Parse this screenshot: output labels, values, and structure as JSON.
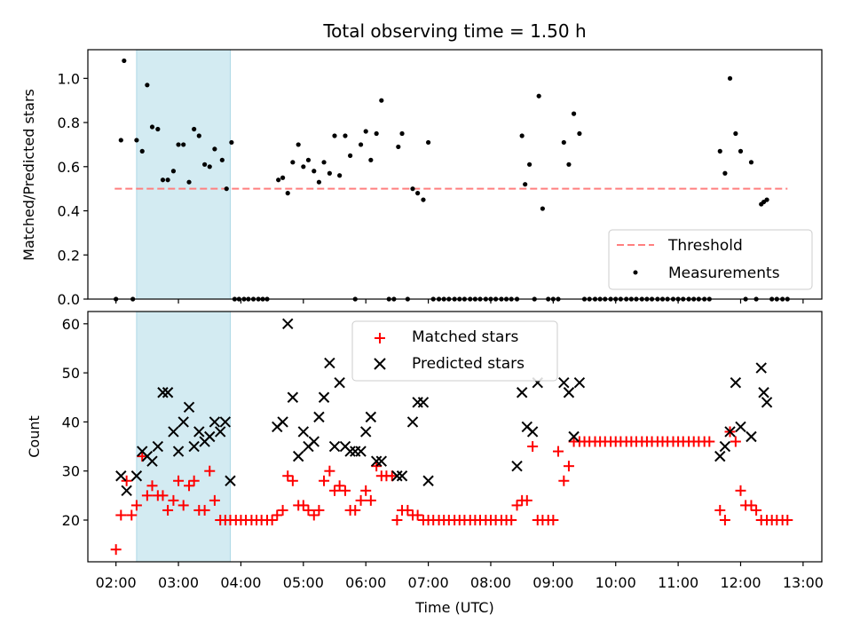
{
  "figure": {
    "title": "Total observing time = 1.50 h",
    "xlabel": "Time (UTC)",
    "x_ticks": [
      "02:00",
      "03:00",
      "04:00",
      "05:00",
      "06:00",
      "07:00",
      "08:00",
      "09:00",
      "10:00",
      "11:00",
      "12:00",
      "13:00"
    ]
  },
  "chart_data": [
    {
      "type": "scatter",
      "panel": "top",
      "title": "Total observing time = 1.50 h",
      "ylabel": "Matched/Predicted stars",
      "xlim": [
        1.55,
        13.3
      ],
      "ylim": [
        0.0,
        1.13
      ],
      "y_ticks": [
        "0.0",
        "0.2",
        "0.4",
        "0.6",
        "0.8",
        "1.0"
      ],
      "highlight_span": {
        "x0": 2.33,
        "x1": 3.83,
        "color": "#d3ebf2"
      },
      "legend": {
        "position": "lower right",
        "entries": [
          "Threshold",
          "Measurements"
        ]
      },
      "threshold": {
        "name": "Threshold",
        "y": 0.5,
        "x_range": [
          1.98,
          12.75
        ],
        "color": "#ff7f7f",
        "style": "dashed"
      },
      "measurements": {
        "name": "Measurements",
        "color": "#000000",
        "x": [
          2.0,
          2.08,
          2.13,
          2.27,
          2.33,
          2.42,
          2.5,
          2.58,
          2.67,
          2.75,
          2.83,
          2.92,
          3.0,
          3.08,
          3.17,
          3.25,
          3.33,
          3.42,
          3.5,
          3.58,
          3.7,
          3.77,
          3.85,
          3.9,
          3.97,
          4.05,
          4.12,
          4.2,
          4.28,
          4.35,
          4.42,
          4.6,
          4.67,
          4.75,
          4.83,
          4.92,
          5.0,
          5.08,
          5.17,
          5.25,
          5.33,
          5.42,
          5.5,
          5.58,
          5.67,
          5.75,
          5.83,
          5.92,
          6.0,
          6.08,
          6.17,
          6.25,
          6.37,
          6.45,
          6.52,
          6.58,
          6.67,
          6.75,
          6.83,
          6.92,
          7.0,
          7.08,
          7.17,
          7.25,
          7.33,
          7.42,
          7.5,
          7.58,
          7.67,
          7.75,
          7.83,
          7.92,
          8.0,
          8.08,
          8.17,
          8.25,
          8.33,
          8.42,
          8.5,
          8.55,
          8.62,
          8.7,
          8.77,
          8.83,
          8.92,
          9.0,
          9.08,
          9.17,
          9.25,
          9.33,
          9.42,
          9.5,
          9.58,
          9.67,
          9.75,
          9.83,
          9.92,
          10.0,
          10.08,
          10.17,
          10.25,
          10.33,
          10.42,
          10.5,
          10.58,
          10.67,
          10.75,
          10.83,
          10.92,
          11.0,
          11.08,
          11.17,
          11.25,
          11.33,
          11.42,
          11.5,
          11.67,
          11.75,
          11.83,
          11.92,
          12.0,
          12.08,
          12.17,
          12.25,
          12.33,
          12.37,
          12.42,
          12.5,
          12.58,
          12.67,
          12.75
        ],
        "y": [
          0.0,
          0.72,
          1.08,
          0.0,
          0.72,
          0.67,
          0.97,
          0.78,
          0.77,
          0.54,
          0.54,
          0.58,
          0.7,
          0.7,
          0.53,
          0.77,
          0.74,
          0.61,
          0.6,
          0.68,
          0.63,
          0.5,
          0.71,
          0.0,
          0.0,
          0.0,
          0.0,
          0.0,
          0.0,
          0.0,
          0.0,
          0.54,
          0.55,
          0.48,
          0.62,
          0.7,
          0.6,
          0.63,
          0.58,
          0.53,
          0.62,
          0.57,
          0.74,
          0.56,
          0.74,
          0.65,
          0.0,
          0.7,
          0.76,
          0.63,
          0.75,
          0.9,
          0.0,
          0.0,
          0.69,
          0.75,
          0.0,
          0.5,
          0.48,
          0.45,
          0.71,
          0.0,
          0.0,
          0.0,
          0.0,
          0.0,
          0.0,
          0.0,
          0.0,
          0.0,
          0.0,
          0.0,
          0.0,
          0.0,
          0.0,
          0.0,
          0.0,
          0.0,
          0.74,
          0.52,
          0.61,
          0.0,
          0.92,
          0.41,
          0.0,
          0.0,
          0.0,
          0.71,
          0.61,
          0.84,
          0.75,
          0.0,
          0.0,
          0.0,
          0.0,
          0.0,
          0.0,
          0.0,
          0.0,
          0.0,
          0.0,
          0.0,
          0.0,
          0.0,
          0.0,
          0.0,
          0.0,
          0.0,
          0.0,
          0.0,
          0.0,
          0.0,
          0.0,
          0.0,
          0.0,
          0.0,
          0.67,
          0.57,
          1.0,
          0.75,
          0.67,
          0.0,
          0.62,
          0.0,
          0.43,
          0.44,
          0.45,
          0.0,
          0.0,
          0.0,
          0.0
        ]
      }
    },
    {
      "type": "scatter",
      "panel": "bottom",
      "xlabel": "Time (UTC)",
      "ylabel": "Count",
      "xlim": [
        1.55,
        13.3
      ],
      "ylim": [
        11.5,
        62.5
      ],
      "y_ticks": [
        "20",
        "30",
        "40",
        "50",
        "60"
      ],
      "highlight_span": {
        "x0": 2.33,
        "x1": 3.83,
        "color": "#d3ebf2"
      },
      "legend": {
        "position": "upper center",
        "entries": [
          "Matched stars",
          "Predicted stars"
        ]
      },
      "series": [
        {
          "name": "Matched stars",
          "marker": "+",
          "color": "#ff0000",
          "x": [
            2.0,
            2.08,
            2.17,
            2.25,
            2.33,
            2.42,
            2.5,
            2.58,
            2.67,
            2.75,
            2.83,
            2.92,
            3.0,
            3.08,
            3.17,
            3.25,
            3.33,
            3.42,
            3.5,
            3.58,
            3.67,
            3.75,
            3.83,
            3.92,
            4.0,
            4.08,
            4.17,
            4.25,
            4.33,
            4.42,
            4.5,
            4.58,
            4.67,
            4.75,
            4.83,
            4.92,
            5.0,
            5.08,
            5.17,
            5.25,
            5.33,
            5.42,
            5.5,
            5.58,
            5.67,
            5.75,
            5.83,
            5.92,
            6.0,
            6.08,
            6.17,
            6.25,
            6.33,
            6.42,
            6.5,
            6.58,
            6.67,
            6.75,
            6.83,
            6.92,
            7.0,
            7.08,
            7.17,
            7.25,
            7.33,
            7.42,
            7.5,
            7.58,
            7.67,
            7.75,
            7.83,
            7.92,
            8.0,
            8.08,
            8.17,
            8.25,
            8.33,
            8.42,
            8.5,
            8.58,
            8.67,
            8.75,
            8.83,
            8.92,
            9.0,
            9.08,
            9.17,
            9.25,
            9.33,
            9.42,
            9.5,
            9.58,
            9.67,
            9.75,
            9.83,
            9.92,
            10.0,
            10.08,
            10.17,
            10.25,
            10.33,
            10.42,
            10.5,
            10.58,
            10.67,
            10.75,
            10.83,
            10.92,
            11.0,
            11.08,
            11.17,
            11.25,
            11.33,
            11.42,
            11.5,
            11.67,
            11.75,
            11.83,
            11.92,
            12.0,
            12.08,
            12.17,
            12.25,
            12.33,
            12.42,
            12.5,
            12.58,
            12.67,
            12.75
          ],
          "y": [
            14,
            21,
            28,
            21,
            23,
            33,
            25,
            27,
            25,
            25,
            22,
            24,
            28,
            23,
            27,
            28,
            22,
            22,
            30,
            24,
            20,
            20,
            20,
            20,
            20,
            20,
            20,
            20,
            20,
            20,
            20,
            21,
            22,
            29,
            28,
            23,
            23,
            22,
            21,
            22,
            28,
            30,
            26,
            27,
            26,
            22,
            22,
            24,
            26,
            24,
            31,
            29,
            29,
            29,
            20,
            22,
            22,
            21,
            21,
            20,
            20,
            20,
            20,
            20,
            20,
            20,
            20,
            20,
            20,
            20,
            20,
            20,
            20,
            20,
            20,
            20,
            20,
            23,
            24,
            24,
            35,
            20,
            20,
            20,
            20,
            34,
            28,
            31,
            36,
            36,
            36,
            36,
            36,
            36,
            36,
            36,
            36,
            36,
            36,
            36,
            36,
            36,
            36,
            36,
            36,
            36,
            36,
            36,
            36,
            36,
            36,
            36,
            36,
            36,
            36,
            22,
            20,
            38,
            36,
            26,
            23,
            23,
            22,
            20,
            20,
            20,
            20,
            20,
            20
          ]
        },
        {
          "name": "Predicted stars",
          "marker": "x",
          "color": "#000000",
          "x": [
            2.08,
            2.17,
            2.33,
            2.42,
            2.5,
            2.58,
            2.67,
            2.75,
            2.83,
            2.92,
            3.0,
            3.08,
            3.17,
            3.25,
            3.33,
            3.42,
            3.5,
            3.58,
            3.67,
            3.75,
            3.83,
            4.58,
            4.67,
            4.75,
            4.83,
            4.92,
            5.0,
            5.08,
            5.17,
            5.25,
            5.33,
            5.42,
            5.5,
            5.58,
            5.67,
            5.75,
            5.83,
            5.92,
            6.0,
            6.08,
            6.17,
            6.25,
            6.5,
            6.58,
            6.75,
            6.83,
            6.92,
            7.0,
            8.42,
            8.5,
            8.58,
            8.67,
            8.75,
            9.17,
            9.25,
            9.33,
            9.42,
            11.67,
            11.75,
            11.83,
            11.92,
            12.0,
            12.17,
            12.33,
            12.37,
            12.42
          ],
          "y": [
            29,
            26,
            29,
            34,
            33,
            32,
            35,
            46,
            46,
            38,
            34,
            40,
            43,
            35,
            38,
            36,
            37,
            40,
            38,
            40,
            28,
            39,
            40,
            60,
            45,
            33,
            38,
            35,
            36,
            41,
            45,
            52,
            35,
            48,
            35,
            34,
            34,
            34,
            38,
            41,
            32,
            32,
            29,
            29,
            40,
            44,
            44,
            28,
            31,
            46,
            39,
            38,
            48,
            48,
            46,
            37,
            48,
            33,
            35,
            38,
            48,
            39,
            37,
            51,
            46,
            44
          ]
        }
      ]
    }
  ]
}
